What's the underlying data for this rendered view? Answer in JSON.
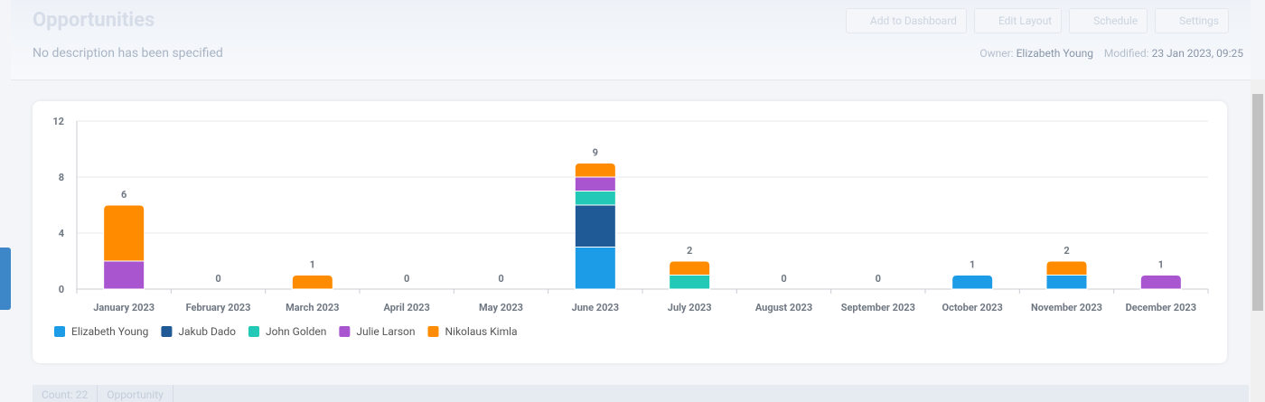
{
  "header": {
    "title": "Opportunities",
    "description": "No description has been specified",
    "buttons": [
      "Add to Dashboard",
      "Edit Layout",
      "Schedule",
      "Settings"
    ],
    "owner_label": "Owner:",
    "owner": "Elizabeth Young",
    "modified_label": "Modified:",
    "modified": "23 Jan 2023, 09:25"
  },
  "chart_data": {
    "type": "stacked-bar",
    "categories": [
      "January 2023",
      "February 2023",
      "March 2023",
      "April 2023",
      "May 2023",
      "June 2023",
      "July 2023",
      "August 2023",
      "September 2023",
      "October 2023",
      "November 2023",
      "December 2023"
    ],
    "series": [
      {
        "name": "Elizabeth Young",
        "color": "#1c9be6",
        "values": [
          0,
          0,
          0,
          0,
          0,
          3,
          0,
          0,
          0,
          1,
          1,
          0
        ]
      },
      {
        "name": "Jakub Dado",
        "color": "#1f5a96",
        "values": [
          0,
          0,
          0,
          0,
          0,
          3,
          0,
          0,
          0,
          0,
          0,
          0
        ]
      },
      {
        "name": "John Golden",
        "color": "#22c9b6",
        "values": [
          0,
          0,
          0,
          0,
          0,
          1,
          1,
          0,
          0,
          0,
          0,
          0
        ]
      },
      {
        "name": "Julie Larson",
        "color": "#a855cf",
        "values": [
          2,
          0,
          0,
          0,
          0,
          1,
          0,
          0,
          0,
          0,
          0,
          1
        ]
      },
      {
        "name": "Nikolaus Kimla",
        "color": "#ff8c00",
        "values": [
          4,
          0,
          1,
          0,
          0,
          1,
          1,
          0,
          0,
          0,
          1,
          0
        ]
      }
    ],
    "totals": [
      6,
      0,
      1,
      0,
      0,
      9,
      2,
      0,
      0,
      1,
      2,
      1
    ],
    "ylim": [
      0,
      12
    ],
    "yticks": [
      0,
      4,
      8,
      12
    ],
    "grid": true
  },
  "footer": {
    "count": "Count: 22",
    "column": "Opportunity"
  }
}
